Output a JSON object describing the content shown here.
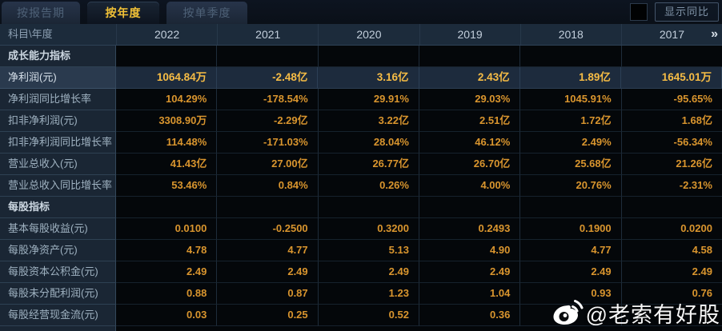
{
  "tabs": [
    {
      "name": "tab-by-report-period",
      "label": "按报告期",
      "active": false
    },
    {
      "name": "tab-by-year",
      "label": "按年度",
      "active": true
    },
    {
      "name": "tab-by-single-quarter",
      "label": "按单季度",
      "active": false
    }
  ],
  "controls": {
    "show_yoy_label": "显示同比",
    "checkbox_checked": false
  },
  "table": {
    "corner_label": "科目\\年度",
    "years": [
      "2022",
      "2021",
      "2020",
      "2019",
      "2018",
      "2017"
    ],
    "more_icon": "»",
    "rows": [
      {
        "type": "section",
        "label": "成长能力指标",
        "values": [
          "",
          "",
          "",
          "",
          "",
          ""
        ]
      },
      {
        "type": "data",
        "highlight": true,
        "label": "净利润(元)",
        "values": [
          "1064.84万",
          "-2.48亿",
          "3.16亿",
          "2.43亿",
          "1.89亿",
          "1645.01万"
        ]
      },
      {
        "type": "data",
        "label": "净利润同比增长率",
        "values": [
          "104.29%",
          "-178.54%",
          "29.91%",
          "29.03%",
          "1045.91%",
          "-95.65%"
        ]
      },
      {
        "type": "data",
        "label": "扣非净利润(元)",
        "values": [
          "3308.90万",
          "-2.29亿",
          "3.22亿",
          "2.51亿",
          "1.72亿",
          "1.68亿"
        ]
      },
      {
        "type": "data",
        "label": "扣非净利润同比增长率",
        "values": [
          "114.48%",
          "-171.03%",
          "28.04%",
          "46.12%",
          "2.49%",
          "-56.34%"
        ]
      },
      {
        "type": "data",
        "label": "营业总收入(元)",
        "values": [
          "41.43亿",
          "27.00亿",
          "26.77亿",
          "26.70亿",
          "25.68亿",
          "21.26亿"
        ]
      },
      {
        "type": "data",
        "label": "营业总收入同比增长率",
        "values": [
          "53.46%",
          "0.84%",
          "0.26%",
          "4.00%",
          "20.76%",
          "-2.31%"
        ]
      },
      {
        "type": "section",
        "label": "每股指标",
        "values": [
          "",
          "",
          "",
          "",
          "",
          ""
        ]
      },
      {
        "type": "data",
        "label": "基本每股收益(元)",
        "values": [
          "0.0100",
          "-0.2500",
          "0.3200",
          "0.2493",
          "0.1900",
          "0.0200"
        ]
      },
      {
        "type": "data",
        "label": "每股净资产(元)",
        "values": [
          "4.78",
          "4.77",
          "5.13",
          "4.90",
          "4.77",
          "4.58"
        ]
      },
      {
        "type": "data",
        "label": "每股资本公积金(元)",
        "values": [
          "2.49",
          "2.49",
          "2.49",
          "2.49",
          "2.49",
          "2.49"
        ]
      },
      {
        "type": "data",
        "label": "每股未分配利润(元)",
        "values": [
          "0.88",
          "0.87",
          "1.23",
          "1.04",
          "0.93",
          "0.76"
        ]
      },
      {
        "type": "data",
        "label": "每股经营现金流(元)",
        "values": [
          "0.03",
          "0.25",
          "0.52",
          "0.36",
          "",
          ""
        ]
      }
    ]
  },
  "watermark": {
    "icon": "weibo-icon",
    "text": "@老索有好股"
  },
  "colors": {
    "accent_gold": "#f2c237",
    "value_orange": "#d9952e",
    "highlight_value": "#f6bc45",
    "header_bg": "#1c2b3b",
    "label_col_bg": "#1a2634",
    "highlight_row_bg": "#1d2b3d",
    "watermark_white": "#f7f7f7"
  }
}
